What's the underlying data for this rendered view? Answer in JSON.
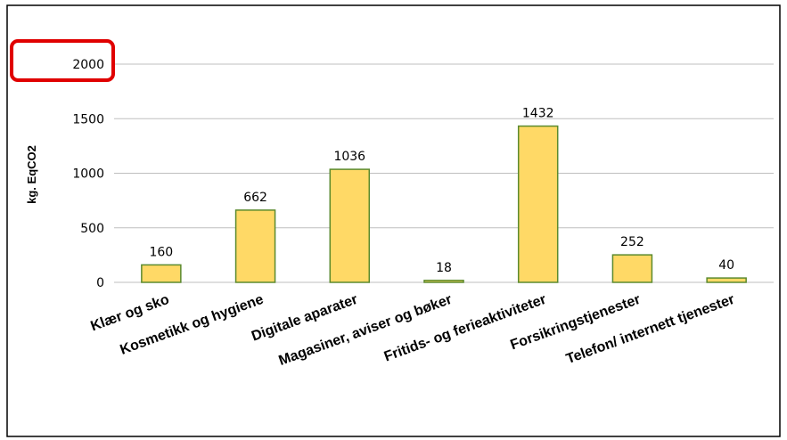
{
  "chart_data": {
    "type": "bar",
    "categories": [
      "Klær og sko",
      "Kosmetikk og hygiene",
      "Digitale aparater",
      "Magasiner, aviser og bøker",
      "Fritids- og ferieaktiviteter",
      "Forsikringstjenester",
      "Telefon/ internett tjenester"
    ],
    "values": [
      160,
      662,
      1036,
      18,
      1432,
      252,
      40
    ],
    "ylabel": "kg. EqCO2",
    "ylim": [
      0,
      2000
    ],
    "yticks": [
      0,
      500,
      1000,
      1500,
      2000
    ],
    "grid": true,
    "bar_color": "#FFD966",
    "bar_edge_color": "#5B8A2E",
    "highlight_color": "#E00000"
  }
}
